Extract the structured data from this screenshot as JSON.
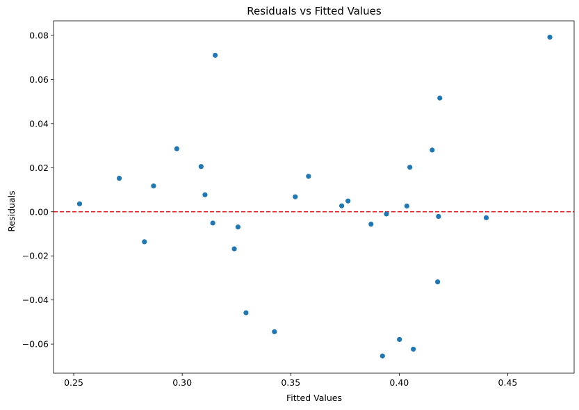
{
  "chart_data": {
    "type": "scatter",
    "title": "Residuals vs Fitted Values",
    "xlabel": "Fitted Values",
    "ylabel": "Residuals",
    "xlim": [
      0.2407,
      0.4806
    ],
    "ylim": [
      -0.0732,
      0.0866
    ],
    "xticks": [
      0.25,
      0.3,
      0.35,
      0.4,
      0.45
    ],
    "xtick_labels": [
      "0.25",
      "0.30",
      "0.35",
      "0.40",
      "0.45"
    ],
    "yticks": [
      -0.06,
      -0.04,
      -0.02,
      0.0,
      0.02,
      0.04,
      0.06,
      0.08
    ],
    "ytick_labels": [
      "−0.06",
      "−0.04",
      "−0.02",
      "0.00",
      "0.02",
      "0.04",
      "0.06",
      "0.08"
    ],
    "grid": false,
    "reference_line": {
      "y": 0.0,
      "color": "#e41a1c",
      "style": "dashed"
    },
    "point_color": "#1f77b4",
    "points": [
      {
        "x": 0.2527,
        "y": 0.0036
      },
      {
        "x": 0.271,
        "y": 0.0152
      },
      {
        "x": 0.2826,
        "y": -0.0136
      },
      {
        "x": 0.2868,
        "y": 0.0117
      },
      {
        "x": 0.2975,
        "y": 0.0286
      },
      {
        "x": 0.3087,
        "y": 0.0205
      },
      {
        "x": 0.3105,
        "y": 0.0077
      },
      {
        "x": 0.3141,
        "y": -0.0051
      },
      {
        "x": 0.3152,
        "y": 0.071
      },
      {
        "x": 0.324,
        "y": -0.0168
      },
      {
        "x": 0.3257,
        "y": -0.0069
      },
      {
        "x": 0.3294,
        "y": -0.0458
      },
      {
        "x": 0.3425,
        "y": -0.0544
      },
      {
        "x": 0.3521,
        "y": 0.0068
      },
      {
        "x": 0.3582,
        "y": 0.0161
      },
      {
        "x": 0.3735,
        "y": 0.0027
      },
      {
        "x": 0.3764,
        "y": 0.0049
      },
      {
        "x": 0.387,
        "y": -0.0056
      },
      {
        "x": 0.3923,
        "y": -0.0654
      },
      {
        "x": 0.3941,
        "y": -0.001
      },
      {
        "x": 0.4001,
        "y": -0.0579
      },
      {
        "x": 0.4035,
        "y": 0.0026
      },
      {
        "x": 0.4049,
        "y": 0.0202
      },
      {
        "x": 0.4065,
        "y": -0.0623
      },
      {
        "x": 0.4152,
        "y": 0.028
      },
      {
        "x": 0.4177,
        "y": -0.0318
      },
      {
        "x": 0.4181,
        "y": -0.0021
      },
      {
        "x": 0.4187,
        "y": 0.0516
      },
      {
        "x": 0.4401,
        "y": -0.0027
      },
      {
        "x": 0.4694,
        "y": 0.0792
      }
    ]
  }
}
